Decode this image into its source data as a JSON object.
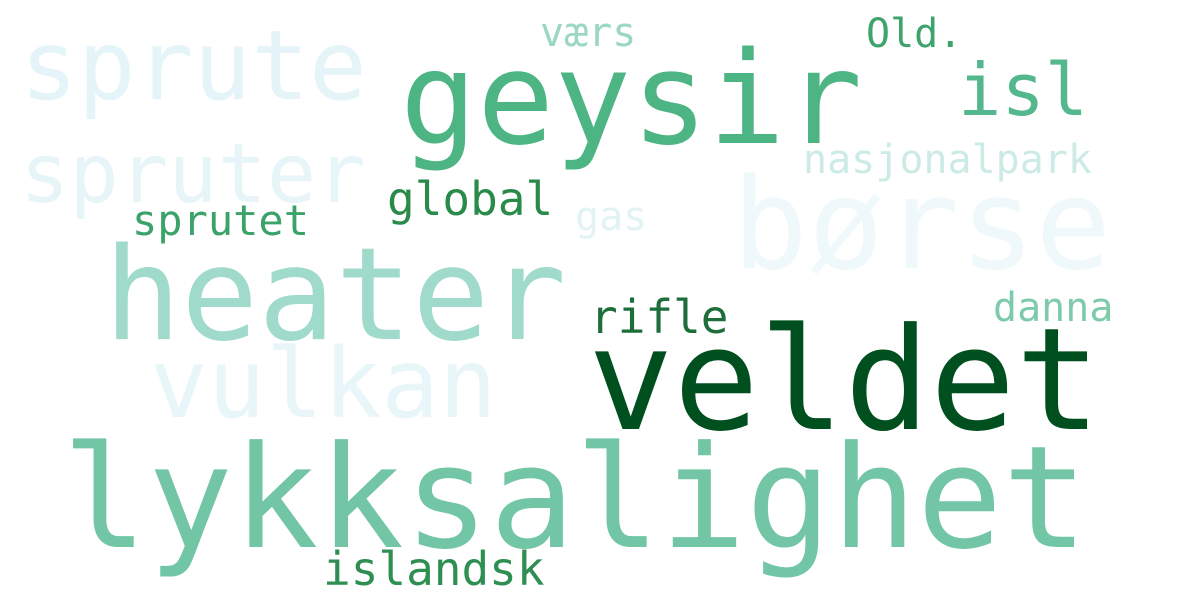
{
  "words": [
    {
      "text": "sprute",
      "color": "#e4f4f8"
    },
    {
      "text": "geysir",
      "color": "#4db583"
    },
    {
      "text": "isl",
      "color": "#55b78d"
    },
    {
      "text": "værs",
      "color": "#9cd7c6"
    },
    {
      "text": "Old.",
      "color": "#3fa36c"
    },
    {
      "text": "spruter",
      "color": "#e7f5f8"
    },
    {
      "text": "nasjonalpark",
      "color": "#cdebe6"
    },
    {
      "text": "global",
      "color": "#298a4a"
    },
    {
      "text": "sprutet",
      "color": "#3ba369"
    },
    {
      "text": "gas",
      "color": "#e1f3f3"
    },
    {
      "text": "børse",
      "color": "#eff8fb"
    },
    {
      "text": "heater",
      "color": "#9fdacb"
    },
    {
      "text": "rifle",
      "color": "#1d6e3a"
    },
    {
      "text": "danna",
      "color": "#7ecbab"
    },
    {
      "text": "vulkan",
      "color": "#e9f6f9"
    },
    {
      "text": "veldet",
      "color": "#00501f"
    },
    {
      "text": "lykksalighet",
      "color": "#72c6a5"
    },
    {
      "text": "islandsk",
      "color": "#2f8f53"
    }
  ]
}
